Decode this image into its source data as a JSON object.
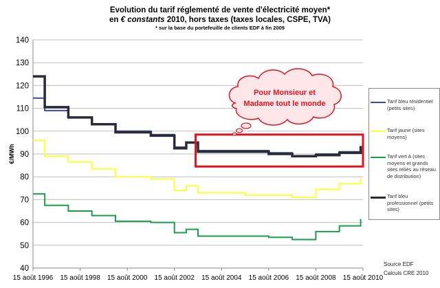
{
  "header": {
    "title": "Evolution du tarif réglementé de vente d'électricité moyen*",
    "subtitle_prefix": "en ",
    "subtitle_italic": "€ constants",
    "subtitle_rest": " 2010, hors taxes (taxes locales, CSPE, TVA)",
    "footnote": "* sur la base du portefeuille de clients EDF à fin 2009"
  },
  "source": {
    "line1": "Source EDF",
    "line2": "Calculs CRE 2010"
  },
  "colors": {
    "bleu_residentiel": "#3b4a8a",
    "jaune": "#ffff33",
    "vert": "#1a9e4a",
    "bleu_professionnel": "#2b2b38",
    "grid": "#bdbdbd",
    "highlight_box": "#e0141e",
    "bubble_fill": "#ffe6e8",
    "bubble_text": "#e0141e"
  },
  "chart_data": {
    "type": "line",
    "ylabel": "€/MWh",
    "ylim": [
      40,
      140
    ],
    "yticks": [
      40,
      50,
      60,
      70,
      80,
      90,
      100,
      110,
      120,
      130,
      140
    ],
    "xlim": [
      1996.6,
      2010.6
    ],
    "xticks": [
      1996.6,
      1998.6,
      2000.6,
      2002.6,
      2004.6,
      2006.6,
      2008.6,
      2010.6
    ],
    "xtick_labels": [
      "15 août 1996",
      "15 août 1998",
      "15 août 2000",
      "15 août 2002",
      "15 août 2004",
      "15 août 2006",
      "15 août 2008",
      "15 août 2010"
    ],
    "grid": "horizontal",
    "legend_position": "right",
    "series": [
      {
        "name": "Tarif bleu résidentiel (petits sites)",
        "color_key": "bleu_residentiel",
        "width": 2,
        "points": [
          [
            1996.6,
            114.5
          ],
          [
            1997.1,
            114.5
          ],
          [
            1997.1,
            109
          ],
          [
            1998.1,
            109
          ],
          [
            1998.1,
            106
          ],
          [
            1999.1,
            106
          ],
          [
            1999.1,
            103
          ],
          [
            2000.1,
            103
          ],
          [
            2000.1,
            100
          ],
          [
            2001.6,
            100
          ],
          [
            2001.6,
            98.5
          ],
          [
            2002.6,
            98.5
          ],
          [
            2002.6,
            93
          ],
          [
            2003.1,
            93
          ],
          [
            2003.1,
            95
          ],
          [
            2003.6,
            95
          ],
          [
            2003.6,
            91.5
          ],
          [
            2006.6,
            91.5
          ],
          [
            2006.6,
            90.5
          ],
          [
            2007.6,
            90.5
          ],
          [
            2007.6,
            89
          ],
          [
            2008.6,
            89
          ],
          [
            2008.6,
            90
          ],
          [
            2009.6,
            90
          ],
          [
            2009.6,
            91
          ],
          [
            2010.5,
            91
          ],
          [
            2010.5,
            93
          ]
        ]
      },
      {
        "name": "Tarif jaune (sites moyens)",
        "color_key": "jaune",
        "width": 2,
        "points": [
          [
            1996.6,
            96
          ],
          [
            1997.1,
            96
          ],
          [
            1997.1,
            89
          ],
          [
            1998.1,
            89
          ],
          [
            1998.1,
            86.5
          ],
          [
            1999.1,
            86.5
          ],
          [
            1999.1,
            83.5
          ],
          [
            2000.1,
            83.5
          ],
          [
            2000.1,
            80
          ],
          [
            2001.6,
            80
          ],
          [
            2001.6,
            79
          ],
          [
            2002.6,
            79
          ],
          [
            2002.6,
            74
          ],
          [
            2003.1,
            74
          ],
          [
            2003.1,
            76
          ],
          [
            2003.6,
            76
          ],
          [
            2003.6,
            73
          ],
          [
            2005.6,
            73
          ],
          [
            2005.6,
            72
          ],
          [
            2007.6,
            72
          ],
          [
            2007.6,
            71
          ],
          [
            2008.6,
            71
          ],
          [
            2008.6,
            74.5
          ],
          [
            2009.6,
            74.5
          ],
          [
            2009.6,
            77
          ],
          [
            2010.5,
            77
          ],
          [
            2010.5,
            79.5
          ]
        ]
      },
      {
        "name": "Tarif vert A (sites moyens et grands sites reliés au réseau de distribution)",
        "color_key": "vert",
        "width": 2,
        "points": [
          [
            1996.6,
            72.5
          ],
          [
            1997.1,
            72.5
          ],
          [
            1997.1,
            67.5
          ],
          [
            1998.1,
            67.5
          ],
          [
            1998.1,
            65
          ],
          [
            1999.1,
            65
          ],
          [
            1999.1,
            63
          ],
          [
            2000.1,
            63
          ],
          [
            2000.1,
            60.5
          ],
          [
            2001.6,
            60.5
          ],
          [
            2001.6,
            60
          ],
          [
            2002.6,
            60
          ],
          [
            2002.6,
            55.5
          ],
          [
            2003.1,
            55.5
          ],
          [
            2003.1,
            57
          ],
          [
            2003.6,
            57
          ],
          [
            2003.6,
            54
          ],
          [
            2006.6,
            54
          ],
          [
            2006.6,
            53.5
          ],
          [
            2007.6,
            53.5
          ],
          [
            2007.6,
            52.5
          ],
          [
            2008.6,
            52.5
          ],
          [
            2008.6,
            56
          ],
          [
            2009.6,
            56
          ],
          [
            2009.6,
            58.5
          ],
          [
            2010.5,
            58.5
          ],
          [
            2010.5,
            61.5
          ]
        ]
      },
      {
        "name": "Tarif bleu professionnel (petits sites)",
        "color_key": "bleu_professionnel",
        "width": 3.5,
        "points": [
          [
            1996.6,
            124
          ],
          [
            1997.1,
            124
          ],
          [
            1997.1,
            110.5
          ],
          [
            1998.1,
            110.5
          ],
          [
            1998.1,
            106
          ],
          [
            1999.1,
            106
          ],
          [
            1999.1,
            103
          ],
          [
            2000.1,
            103
          ],
          [
            2000.1,
            99.5
          ],
          [
            2001.6,
            99.5
          ],
          [
            2001.6,
            98
          ],
          [
            2002.6,
            98
          ],
          [
            2002.6,
            92.5
          ],
          [
            2003.1,
            92.5
          ],
          [
            2003.1,
            95
          ],
          [
            2003.6,
            95
          ],
          [
            2003.6,
            91
          ],
          [
            2006.6,
            91
          ],
          [
            2006.6,
            90
          ],
          [
            2007.6,
            90
          ],
          [
            2007.6,
            89
          ],
          [
            2008.6,
            89
          ],
          [
            2008.6,
            89.5
          ],
          [
            2009.6,
            89.5
          ],
          [
            2009.6,
            90.5
          ],
          [
            2010.5,
            90.5
          ],
          [
            2010.5,
            93.5
          ]
        ]
      }
    ],
    "annotations": [
      {
        "type": "highlight_box",
        "x_range": [
          2003.5,
          2010.6
        ],
        "y_range": [
          84.5,
          98.5
        ]
      },
      {
        "type": "callout_bubble",
        "text_line1": "Pour Monsieur et",
        "text_line2": "Madame tout le monde"
      }
    ]
  }
}
